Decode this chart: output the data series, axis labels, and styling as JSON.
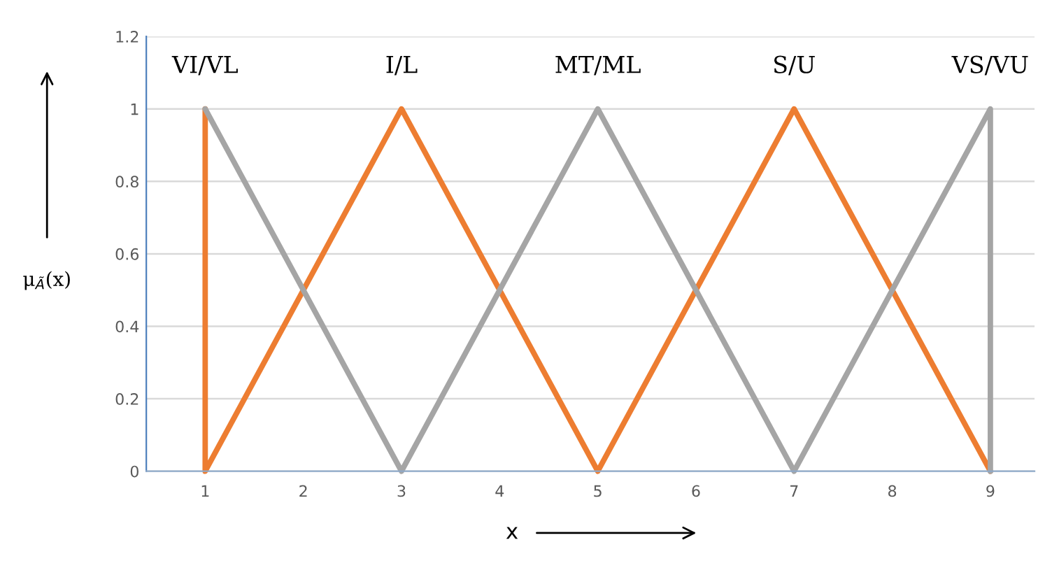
{
  "chart_data": {
    "type": "line",
    "xlabel": "x",
    "ylabel": "μ$_{Ã}$(x)",
    "series": [
      {
        "color": "#ed7d31",
        "x": [
          1,
          1,
          3,
          5,
          7,
          9
        ],
        "values": [
          1,
          0,
          1,
          0,
          1,
          0
        ]
      },
      {
        "color": "#a5a5a5",
        "x": [
          1,
          3,
          5,
          7,
          9,
          9
        ],
        "values": [
          1,
          0,
          1,
          0,
          1,
          0
        ]
      }
    ],
    "xlim": [
      0.4,
      9.45
    ],
    "xticks": [
      1,
      2,
      3,
      4,
      5,
      6,
      7,
      8,
      9
    ],
    "ylim": [
      0,
      1.2
    ],
    "yticks": [
      0,
      0.2,
      0.4,
      0.6,
      0.8,
      1,
      1.2
    ],
    "annotations": [
      {
        "text": "VI/VL",
        "x": 1,
        "y": 1
      },
      {
        "text": "I/L",
        "x": 3,
        "y": 1
      },
      {
        "text": "MT/ML",
        "x": 5,
        "y": 1
      },
      {
        "text": "S/U",
        "x": 7,
        "y": 1
      },
      {
        "text": "VS/VU",
        "x": 9,
        "y": 1
      }
    ],
    "grid": "y",
    "legend": false,
    "marker": "none",
    "line_style": "solid"
  }
}
